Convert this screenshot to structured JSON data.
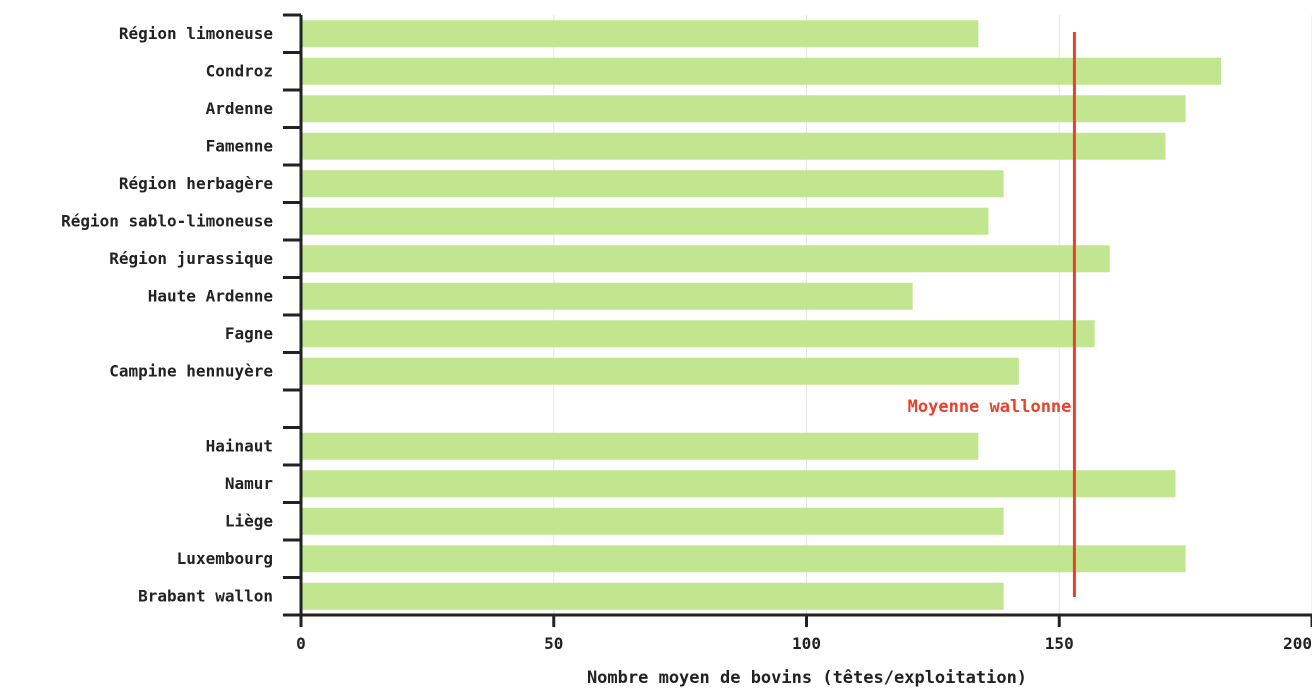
{
  "chart_data": {
    "type": "bar",
    "orientation": "horizontal",
    "categories": [
      "Région limoneuse",
      "Condroz",
      "Ardenne",
      "Famenne",
      "Région herbagère",
      "Région sablo-limoneuse",
      "Région jurassique",
      "Haute Ardenne",
      "Fagne",
      "Campine hennuyère",
      "",
      "Hainaut",
      "Namur",
      "Liège",
      "Luxembourg",
      "Brabant wallon"
    ],
    "values": [
      134,
      182,
      175,
      171,
      139,
      136,
      160,
      121,
      157,
      142,
      null,
      134,
      173,
      139,
      175,
      139
    ],
    "xlabel": "Nombre moyen de bovins (têtes/exploitation)",
    "ylabel": "",
    "xlim": [
      0,
      200
    ],
    "xticks": [
      0,
      50,
      100,
      150,
      200
    ],
    "grid": "vertical",
    "reference_line": {
      "value": 153,
      "label": "Moyenne wallonne"
    },
    "colors": {
      "bar": "#c2e690",
      "reference": "#e8412c",
      "axis": "#222222",
      "grid": "#e6e6e6"
    }
  }
}
